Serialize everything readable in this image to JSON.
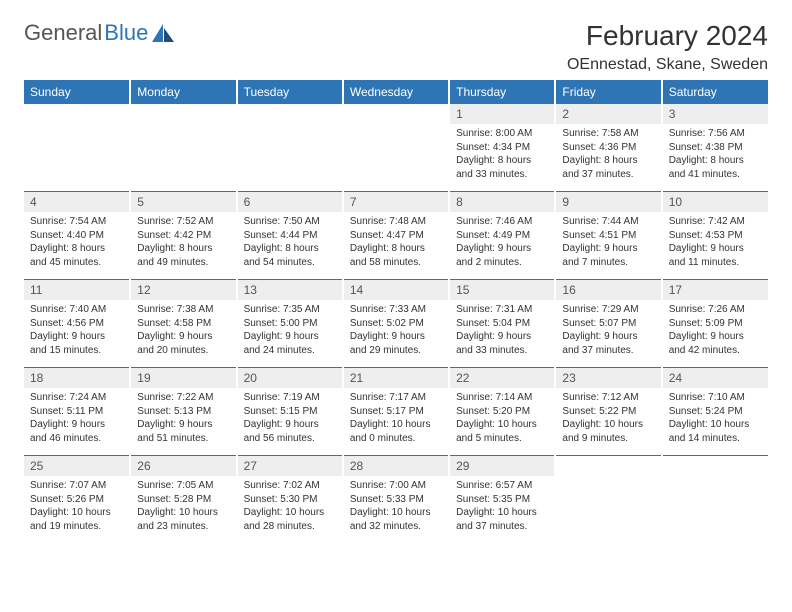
{
  "logo": {
    "text_gray": "General",
    "text_blue": "Blue"
  },
  "title": "February 2024",
  "location": "OEnnestad, Skane, Sweden",
  "colors": {
    "header_bg": "#2e75b6",
    "header_fg": "#ffffff",
    "daynum_bg": "#eeeeee",
    "body_text": "#333333",
    "rule": "#2e75b6"
  },
  "day_names": [
    "Sunday",
    "Monday",
    "Tuesday",
    "Wednesday",
    "Thursday",
    "Friday",
    "Saturday"
  ],
  "weeks": [
    [
      null,
      null,
      null,
      null,
      {
        "n": "1",
        "sr": "Sunrise: 8:00 AM",
        "ss": "Sunset: 4:34 PM",
        "d1": "Daylight: 8 hours",
        "d2": "and 33 minutes."
      },
      {
        "n": "2",
        "sr": "Sunrise: 7:58 AM",
        "ss": "Sunset: 4:36 PM",
        "d1": "Daylight: 8 hours",
        "d2": "and 37 minutes."
      },
      {
        "n": "3",
        "sr": "Sunrise: 7:56 AM",
        "ss": "Sunset: 4:38 PM",
        "d1": "Daylight: 8 hours",
        "d2": "and 41 minutes."
      }
    ],
    [
      {
        "n": "4",
        "sr": "Sunrise: 7:54 AM",
        "ss": "Sunset: 4:40 PM",
        "d1": "Daylight: 8 hours",
        "d2": "and 45 minutes."
      },
      {
        "n": "5",
        "sr": "Sunrise: 7:52 AM",
        "ss": "Sunset: 4:42 PM",
        "d1": "Daylight: 8 hours",
        "d2": "and 49 minutes."
      },
      {
        "n": "6",
        "sr": "Sunrise: 7:50 AM",
        "ss": "Sunset: 4:44 PM",
        "d1": "Daylight: 8 hours",
        "d2": "and 54 minutes."
      },
      {
        "n": "7",
        "sr": "Sunrise: 7:48 AM",
        "ss": "Sunset: 4:47 PM",
        "d1": "Daylight: 8 hours",
        "d2": "and 58 minutes."
      },
      {
        "n": "8",
        "sr": "Sunrise: 7:46 AM",
        "ss": "Sunset: 4:49 PM",
        "d1": "Daylight: 9 hours",
        "d2": "and 2 minutes."
      },
      {
        "n": "9",
        "sr": "Sunrise: 7:44 AM",
        "ss": "Sunset: 4:51 PM",
        "d1": "Daylight: 9 hours",
        "d2": "and 7 minutes."
      },
      {
        "n": "10",
        "sr": "Sunrise: 7:42 AM",
        "ss": "Sunset: 4:53 PM",
        "d1": "Daylight: 9 hours",
        "d2": "and 11 minutes."
      }
    ],
    [
      {
        "n": "11",
        "sr": "Sunrise: 7:40 AM",
        "ss": "Sunset: 4:56 PM",
        "d1": "Daylight: 9 hours",
        "d2": "and 15 minutes."
      },
      {
        "n": "12",
        "sr": "Sunrise: 7:38 AM",
        "ss": "Sunset: 4:58 PM",
        "d1": "Daylight: 9 hours",
        "d2": "and 20 minutes."
      },
      {
        "n": "13",
        "sr": "Sunrise: 7:35 AM",
        "ss": "Sunset: 5:00 PM",
        "d1": "Daylight: 9 hours",
        "d2": "and 24 minutes."
      },
      {
        "n": "14",
        "sr": "Sunrise: 7:33 AM",
        "ss": "Sunset: 5:02 PM",
        "d1": "Daylight: 9 hours",
        "d2": "and 29 minutes."
      },
      {
        "n": "15",
        "sr": "Sunrise: 7:31 AM",
        "ss": "Sunset: 5:04 PM",
        "d1": "Daylight: 9 hours",
        "d2": "and 33 minutes."
      },
      {
        "n": "16",
        "sr": "Sunrise: 7:29 AM",
        "ss": "Sunset: 5:07 PM",
        "d1": "Daylight: 9 hours",
        "d2": "and 37 minutes."
      },
      {
        "n": "17",
        "sr": "Sunrise: 7:26 AM",
        "ss": "Sunset: 5:09 PM",
        "d1": "Daylight: 9 hours",
        "d2": "and 42 minutes."
      }
    ],
    [
      {
        "n": "18",
        "sr": "Sunrise: 7:24 AM",
        "ss": "Sunset: 5:11 PM",
        "d1": "Daylight: 9 hours",
        "d2": "and 46 minutes."
      },
      {
        "n": "19",
        "sr": "Sunrise: 7:22 AM",
        "ss": "Sunset: 5:13 PM",
        "d1": "Daylight: 9 hours",
        "d2": "and 51 minutes."
      },
      {
        "n": "20",
        "sr": "Sunrise: 7:19 AM",
        "ss": "Sunset: 5:15 PM",
        "d1": "Daylight: 9 hours",
        "d2": "and 56 minutes."
      },
      {
        "n": "21",
        "sr": "Sunrise: 7:17 AM",
        "ss": "Sunset: 5:17 PM",
        "d1": "Daylight: 10 hours",
        "d2": "and 0 minutes."
      },
      {
        "n": "22",
        "sr": "Sunrise: 7:14 AM",
        "ss": "Sunset: 5:20 PM",
        "d1": "Daylight: 10 hours",
        "d2": "and 5 minutes."
      },
      {
        "n": "23",
        "sr": "Sunrise: 7:12 AM",
        "ss": "Sunset: 5:22 PM",
        "d1": "Daylight: 10 hours",
        "d2": "and 9 minutes."
      },
      {
        "n": "24",
        "sr": "Sunrise: 7:10 AM",
        "ss": "Sunset: 5:24 PM",
        "d1": "Daylight: 10 hours",
        "d2": "and 14 minutes."
      }
    ],
    [
      {
        "n": "25",
        "sr": "Sunrise: 7:07 AM",
        "ss": "Sunset: 5:26 PM",
        "d1": "Daylight: 10 hours",
        "d2": "and 19 minutes."
      },
      {
        "n": "26",
        "sr": "Sunrise: 7:05 AM",
        "ss": "Sunset: 5:28 PM",
        "d1": "Daylight: 10 hours",
        "d2": "and 23 minutes."
      },
      {
        "n": "27",
        "sr": "Sunrise: 7:02 AM",
        "ss": "Sunset: 5:30 PM",
        "d1": "Daylight: 10 hours",
        "d2": "and 28 minutes."
      },
      {
        "n": "28",
        "sr": "Sunrise: 7:00 AM",
        "ss": "Sunset: 5:33 PM",
        "d1": "Daylight: 10 hours",
        "d2": "and 32 minutes."
      },
      {
        "n": "29",
        "sr": "Sunrise: 6:57 AM",
        "ss": "Sunset: 5:35 PM",
        "d1": "Daylight: 10 hours",
        "d2": "and 37 minutes."
      },
      null,
      null
    ]
  ]
}
